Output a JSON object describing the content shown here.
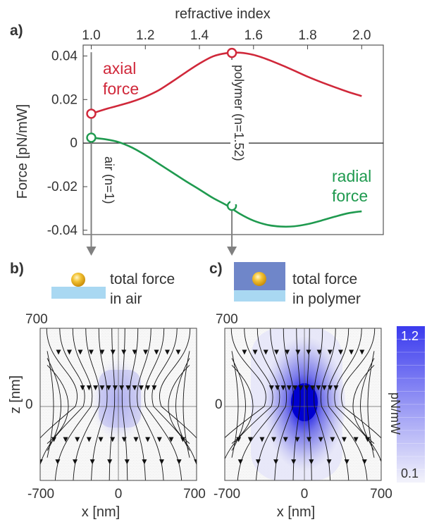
{
  "panels": {
    "a": "a)",
    "b": "b)",
    "c": "c)"
  },
  "chart_data": [
    {
      "type": "line",
      "panel": "a)",
      "xlabel": "refractive index",
      "ylabel": "Force [pN/mW]",
      "xlim": [
        0.97,
        2.08
      ],
      "ylim": [
        -0.042,
        0.045
      ],
      "x_ticks": [
        "1.0",
        "1.2",
        "1.4",
        "1.6",
        "1.8",
        "2.0"
      ],
      "x_tick_values": [
        1.0,
        1.2,
        1.4,
        1.6,
        1.8,
        2.0
      ],
      "y_ticks": [
        "0.04",
        "0.02",
        "0",
        "-0.02",
        "-0.04"
      ],
      "y_tick_values": [
        0.04,
        0.02,
        0,
        -0.02,
        -0.04
      ],
      "series": [
        {
          "name": "axial force",
          "color": "#d0283a",
          "x": [
            1.0,
            1.05,
            1.1,
            1.15,
            1.2,
            1.25,
            1.3,
            1.35,
            1.4,
            1.45,
            1.5,
            1.55,
            1.6,
            1.65,
            1.7,
            1.75,
            1.8,
            1.85,
            1.9,
            1.95,
            2.0
          ],
          "y": [
            0.0135,
            0.0155,
            0.0172,
            0.019,
            0.0213,
            0.0243,
            0.0283,
            0.0325,
            0.0365,
            0.0398,
            0.0413,
            0.0415,
            0.0405,
            0.0385,
            0.036,
            0.0333,
            0.0305,
            0.028,
            0.0257,
            0.0235,
            0.0216
          ]
        },
        {
          "name": "radial force",
          "color": "#1f9a4f",
          "x": [
            1.0,
            1.05,
            1.1,
            1.15,
            1.2,
            1.25,
            1.3,
            1.35,
            1.4,
            1.45,
            1.5,
            1.55,
            1.6,
            1.65,
            1.7,
            1.75,
            1.8,
            1.85,
            1.9,
            1.95,
            2.0
          ],
          "y": [
            0.0025,
            0.0018,
            0.0005,
            -0.002,
            -0.0055,
            -0.0095,
            -0.0135,
            -0.0175,
            -0.0213,
            -0.0252,
            -0.0285,
            -0.0325,
            -0.0356,
            -0.0375,
            -0.0383,
            -0.0382,
            -0.0372,
            -0.0356,
            -0.0338,
            -0.0322,
            -0.0313
          ]
        }
      ],
      "markers": [
        {
          "series": "axial force",
          "x": 1.0,
          "y": 0.0135
        },
        {
          "series": "axial force",
          "x": 1.52,
          "y": 0.0414
        },
        {
          "series": "radial force",
          "x": 1.0,
          "y": 0.0025
        },
        {
          "series": "radial force",
          "x": 1.52,
          "y": -0.0288
        }
      ],
      "annotations": {
        "axial_1": "axial",
        "axial_2": "force",
        "radial_1": "radial",
        "radial_2": "force",
        "air": "air (n=1)",
        "polymer": "polymer (n=1.52)"
      },
      "vertical_lines_at": [
        1.0,
        1.52
      ],
      "zero_line": true,
      "grid": false
    },
    {
      "type": "heatmap",
      "panel": "b)",
      "title_lines": [
        "total force",
        "in air"
      ],
      "xlabel": "x [nm]",
      "ylabel": "z [nm]",
      "x_ticks": [
        "-700",
        "0",
        "700"
      ],
      "y_ticks": [
        "700",
        "0"
      ],
      "xlim": [
        -700,
        700
      ],
      "ylim": [
        -700,
        700
      ],
      "peak_value": 0.25,
      "streamlines": true
    },
    {
      "type": "heatmap",
      "panel": "c)",
      "title_lines": [
        "total force",
        "in polymer"
      ],
      "xlabel": "x [nm]",
      "ylabel": "",
      "x_ticks": [
        "-700",
        "0",
        "700"
      ],
      "y_ticks": [
        "700",
        "0"
      ],
      "xlim": [
        -700,
        700
      ],
      "ylim": [
        -700,
        700
      ],
      "peak_value": 1.2,
      "streamlines": true
    }
  ],
  "colorbar": {
    "label": "pN/mW",
    "max_label": "1.2",
    "min_label": "0.1",
    "min": 0.1,
    "max": 1.2,
    "color_low": "#f3f3fb",
    "color_high": "#3a3aee"
  },
  "colors": {
    "axial": "#d0283a",
    "radial": "#1f9a4f",
    "arrow": "#808080",
    "substrate": "#a9d8f2",
    "polymer": "#6f86c9",
    "particle": "#f2c233"
  }
}
